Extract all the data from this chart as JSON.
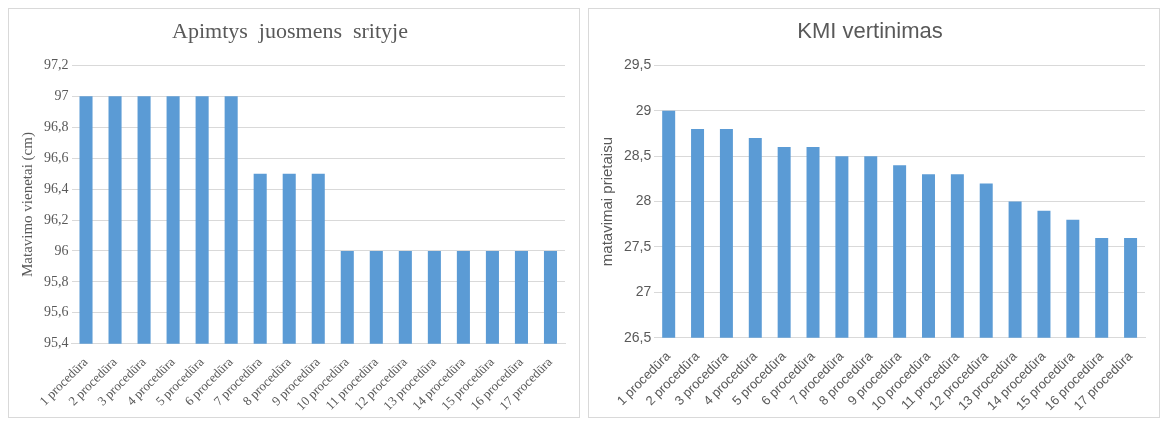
{
  "chart_data": [
    {
      "type": "bar",
      "title": "Apimtys  juosmens  srityje",
      "ylabel": "Matavimo vienetai (cm)",
      "categories": [
        "1 procedūra",
        "2 procedūra",
        "3 procedūra",
        "4 procedūra",
        "5 procedūra",
        "6 procedūra",
        "7 procedūra",
        "8 procedūra",
        "9 procedūra",
        "10 procedūra",
        "11 procedūra",
        "12 procedūra",
        "13 procedūra",
        "14 procedūra",
        "15 procedūra",
        "16 procedūra",
        "17 procedūra"
      ],
      "values": [
        97,
        97,
        97,
        97,
        97,
        97,
        96.5,
        96.5,
        96.5,
        96,
        96,
        96,
        96,
        96,
        96,
        96,
        96
      ],
      "color": "#5b9bd5",
      "ylim": [
        95.4,
        97.2
      ],
      "yticks": [
        {
          "value": 95.4,
          "label": "95,4"
        },
        {
          "value": 95.6,
          "label": "95,6"
        },
        {
          "value": 95.8,
          "label": "95,8"
        },
        96,
        {
          "value": 96.2,
          "label": "96,2"
        },
        {
          "value": 96.4,
          "label": "96,4"
        },
        {
          "value": 96.6,
          "label": "96,6"
        },
        {
          "value": 96.8,
          "label": "96,8"
        },
        97,
        {
          "value": 97.2,
          "label": "97,2"
        }
      ],
      "grid": "y",
      "legend": false
    },
    {
      "type": "bar",
      "title": "KMI vertinimas",
      "ylabel": "matavimai prietaisu",
      "categories": [
        "1 procedūra",
        "2 procedūra",
        "3 procedūra",
        "4 procedūra",
        "5 procedūra",
        "6 procedūra",
        "7 procedūra",
        "8 procedūra",
        "9 procedūra",
        "10 procedūra",
        "11 procedūra",
        "12 procedūra",
        "13 procedūra",
        "14 procedūra",
        "15 procedūra",
        "16 procedūra",
        "17 procedūra"
      ],
      "values": [
        29,
        28.8,
        28.8,
        28.7,
        28.6,
        28.6,
        28.5,
        28.5,
        28.4,
        28.3,
        28.3,
        28.2,
        28,
        27.9,
        27.8,
        27.6,
        27.6
      ],
      "color": "#5b9bd5",
      "ylim": [
        26.5,
        29.5
      ],
      "yticks": [
        {
          "value": 26.5,
          "label": "26,5"
        },
        27,
        {
          "value": 27.5,
          "label": "27,5"
        },
        28,
        {
          "value": 28.5,
          "label": "28,5"
        },
        29,
        {
          "value": 29.5,
          "label": "29,5"
        }
      ],
      "grid": "y",
      "legend": false
    }
  ]
}
